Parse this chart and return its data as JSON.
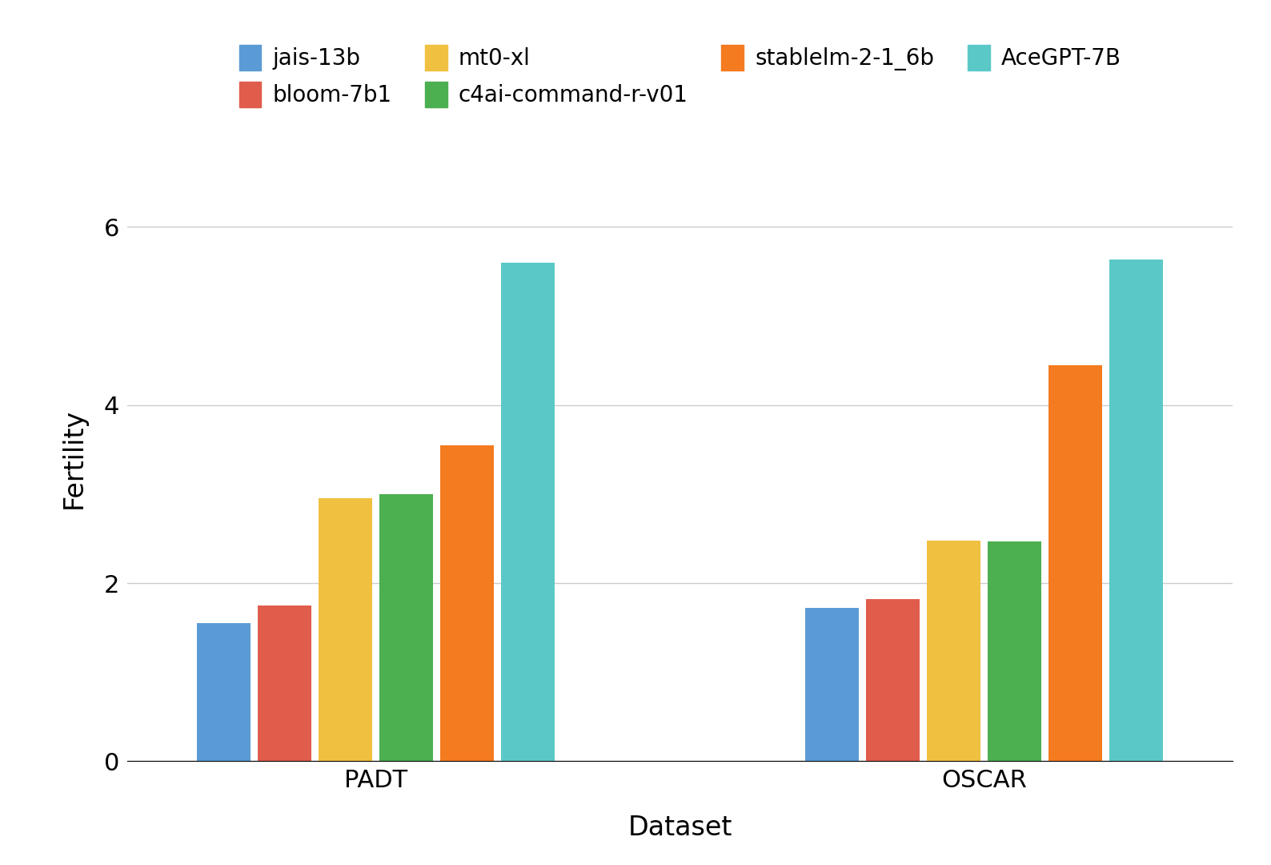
{
  "categories": [
    "PADT",
    "OSCAR"
  ],
  "models": [
    "jais-13b",
    "bloom-7b1",
    "mt0-xl",
    "c4ai-command-r-v01",
    "stablelm-2-1_6b",
    "AceGPT-7B"
  ],
  "colors": [
    "#5B9BD5",
    "#E05C4B",
    "#F0C040",
    "#4CAF50",
    "#F47B20",
    "#5BC8C8"
  ],
  "values": {
    "PADT": [
      1.55,
      1.75,
      2.95,
      3.0,
      3.55,
      5.6
    ],
    "OSCAR": [
      1.72,
      1.82,
      2.48,
      2.47,
      4.45,
      5.63
    ]
  },
  "ylabel": "Fertility",
  "xlabel": "Dataset",
  "ylim": [
    0,
    6.8
  ],
  "yticks": [
    0,
    2,
    4,
    6
  ],
  "bar_width": 0.11,
  "background_color": "#ffffff",
  "grid_color": "#cccccc",
  "font_size_labels": 24,
  "font_size_ticks": 22,
  "font_size_legend": 20
}
